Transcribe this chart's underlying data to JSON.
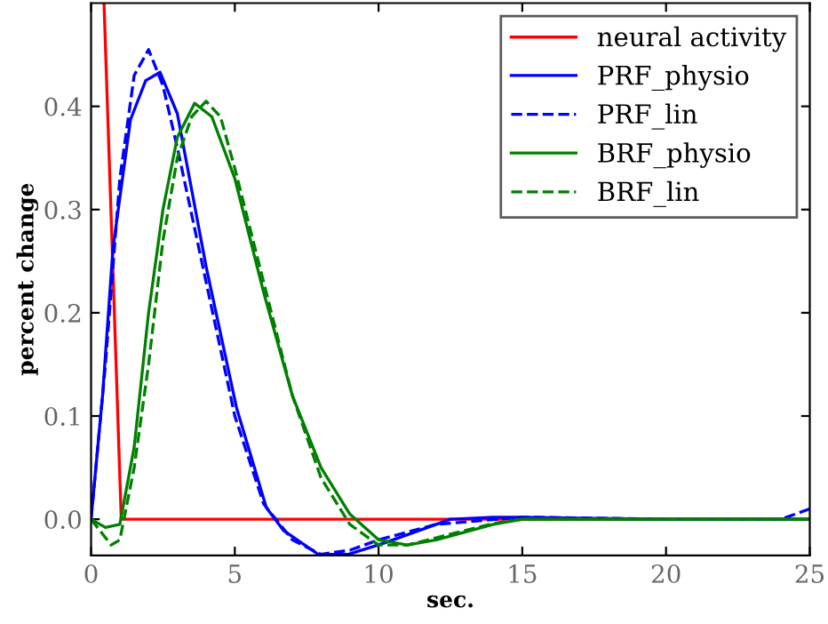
{
  "chart_data": {
    "type": "line",
    "xlabel": "sec.",
    "ylabel": "percent change",
    "xlim": [
      0,
      25
    ],
    "ylim": [
      -0.035,
      0.5
    ],
    "xticks": [
      0,
      5,
      10,
      15,
      20,
      25
    ],
    "yticks": [
      {
        "value": 0,
        "label": "0.0"
      },
      {
        "value": 0.1,
        "label": "0.1"
      },
      {
        "value": 0.2,
        "label": "0.2"
      },
      {
        "value": 0.3,
        "label": "0.3"
      },
      {
        "value": 0.4,
        "label": "0.4"
      }
    ],
    "grid": false,
    "legend": "top right",
    "series": [
      {
        "name": "neural activity",
        "color": "#ff0000",
        "line_style": "solid",
        "x": [
          0.45,
          1.05,
          25
        ],
        "values": [
          0.5,
          0,
          0
        ]
      },
      {
        "name": "PRF_physio",
        "color": "#0000ff",
        "line_style": "solid",
        "x": [
          0,
          0.4,
          0.76,
          1.37,
          1.9,
          2.4,
          3.0,
          4.0,
          5.06,
          6.1,
          6.7,
          7.9,
          8.95,
          10.2,
          11.6,
          12.5,
          14,
          15,
          17,
          20,
          25
        ],
        "values": [
          0,
          0.12,
          0.262,
          0.387,
          0.425,
          0.433,
          0.393,
          0.245,
          0.108,
          0.011,
          -0.011,
          -0.034,
          -0.034,
          -0.023,
          -0.009,
          0,
          0.002,
          0.002,
          0.001,
          0,
          0
        ]
      },
      {
        "name": "PRF_lin",
        "color": "#0000ff",
        "line_style": "dashed",
        "x": [
          0,
          0.5,
          1,
          1.5,
          2.0,
          2.5,
          3,
          4,
          5,
          6,
          7,
          8,
          9,
          10,
          12,
          15,
          20,
          24,
          25
        ],
        "values": [
          0,
          0.15,
          0.33,
          0.43,
          0.455,
          0.42,
          0.36,
          0.23,
          0.1,
          0.015,
          -0.02,
          -0.034,
          -0.03,
          -0.02,
          -0.005,
          0.002,
          0,
          0,
          0.01
        ]
      },
      {
        "name": "BRF_physio",
        "color": "#008000",
        "line_style": "solid",
        "x": [
          0,
          0.5,
          1,
          1.5,
          2,
          2.5,
          3,
          3.6,
          4.2,
          5,
          6,
          7,
          8,
          9,
          10,
          11,
          12,
          14,
          15,
          25
        ],
        "values": [
          0,
          -0.008,
          -0.005,
          0.07,
          0.2,
          0.3,
          0.37,
          0.403,
          0.39,
          0.33,
          0.22,
          0.12,
          0.05,
          0.005,
          -0.02,
          -0.025,
          -0.02,
          -0.005,
          0,
          0
        ]
      },
      {
        "name": "BRF_lin",
        "color": "#008000",
        "line_style": "dashed",
        "x": [
          0,
          0.7,
          1,
          1.5,
          2,
          2.5,
          3,
          3.5,
          4,
          4.5,
          5,
          6,
          7,
          8,
          9,
          10,
          11,
          12,
          14,
          15,
          25
        ],
        "values": [
          0,
          -0.025,
          -0.02,
          0.05,
          0.15,
          0.27,
          0.35,
          0.39,
          0.405,
          0.39,
          0.34,
          0.23,
          0.12,
          0.04,
          -0.005,
          -0.025,
          -0.025,
          -0.018,
          -0.004,
          0,
          0
        ]
      }
    ]
  }
}
